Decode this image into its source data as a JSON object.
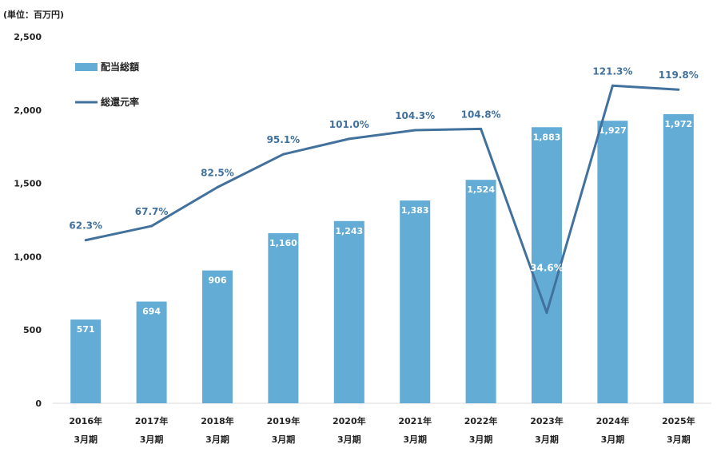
{
  "unit_label": "(単位：百万円)",
  "chart_data": {
    "type": "bar",
    "categories": [
      [
        "2016年",
        "3月期"
      ],
      [
        "2017年",
        "3月期"
      ],
      [
        "2018年",
        "3月期"
      ],
      [
        "2019年",
        "3月期"
      ],
      [
        "2020年",
        "3月期"
      ],
      [
        "2021年",
        "3月期"
      ],
      [
        "2022年",
        "3月期"
      ],
      [
        "2023年",
        "3月期"
      ],
      [
        "2024年",
        "3月期"
      ],
      [
        "2025年",
        "3月期"
      ]
    ],
    "ylim": [
      0,
      2500
    ],
    "yticks": [
      0,
      500,
      1000,
      1500,
      2000,
      2500
    ],
    "ytick_labels": [
      "0",
      "500",
      "1,000",
      "1,500",
      "2,000",
      "2,500"
    ],
    "bar_color": "#63acd6",
    "line_color": "#41719c",
    "legend_position": "top-left",
    "series": [
      {
        "name": "配当総額",
        "type": "bar",
        "values": [
          571,
          694,
          906,
          1160,
          1243,
          1383,
          1524,
          1883,
          1927,
          1972
        ],
        "labels": [
          "571",
          "694",
          "906",
          "1,160",
          "1,243",
          "1,383",
          "1,524",
          "1,883",
          "1,927",
          "1,972"
        ]
      },
      {
        "name": "総還元率",
        "type": "line",
        "values": [
          62.3,
          67.7,
          82.5,
          95.1,
          101.0,
          104.3,
          104.8,
          34.6,
          121.3,
          119.8
        ],
        "labels": [
          "62.3%",
          "67.7%",
          "82.5%",
          "95.1%",
          "101.0%",
          "104.3%",
          "104.8%",
          "34.6%",
          "121.3%",
          "119.8%"
        ],
        "ylim": [
          0,
          140
        ]
      }
    ]
  }
}
